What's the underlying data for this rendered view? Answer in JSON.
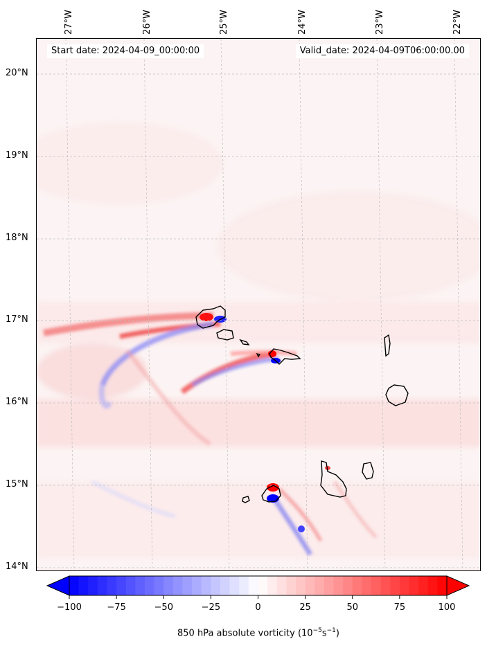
{
  "map": {
    "lon_labels": [
      "27°W",
      "26°W",
      "25°W",
      "24°W",
      "23°W",
      "22°W"
    ],
    "lat_labels": [
      "20°N",
      "19°N",
      "18°N",
      "17°N",
      "16°N",
      "15°N",
      "14°N"
    ],
    "start_date": "Start date: 2024-04-09_00:00:00",
    "valid_date": "Valid_date: 2024-04-09T06:00:00.00",
    "coastline_color": "#000000",
    "background_fill": "light pink (weak positive vorticity)"
  },
  "colorbar": {
    "ticks": [
      "−100",
      "−75",
      "−50",
      "−25",
      "0",
      "25",
      "50",
      "75",
      "100"
    ],
    "label_main": "850 hPa absolute vorticity (10",
    "label_exp1": "−5",
    "label_mid": "s",
    "label_exp2": "−1",
    "label_end": ")",
    "min_color": "#0000ff",
    "mid_color": "#ffffff",
    "max_color": "#ff0000",
    "extend": "both"
  }
}
